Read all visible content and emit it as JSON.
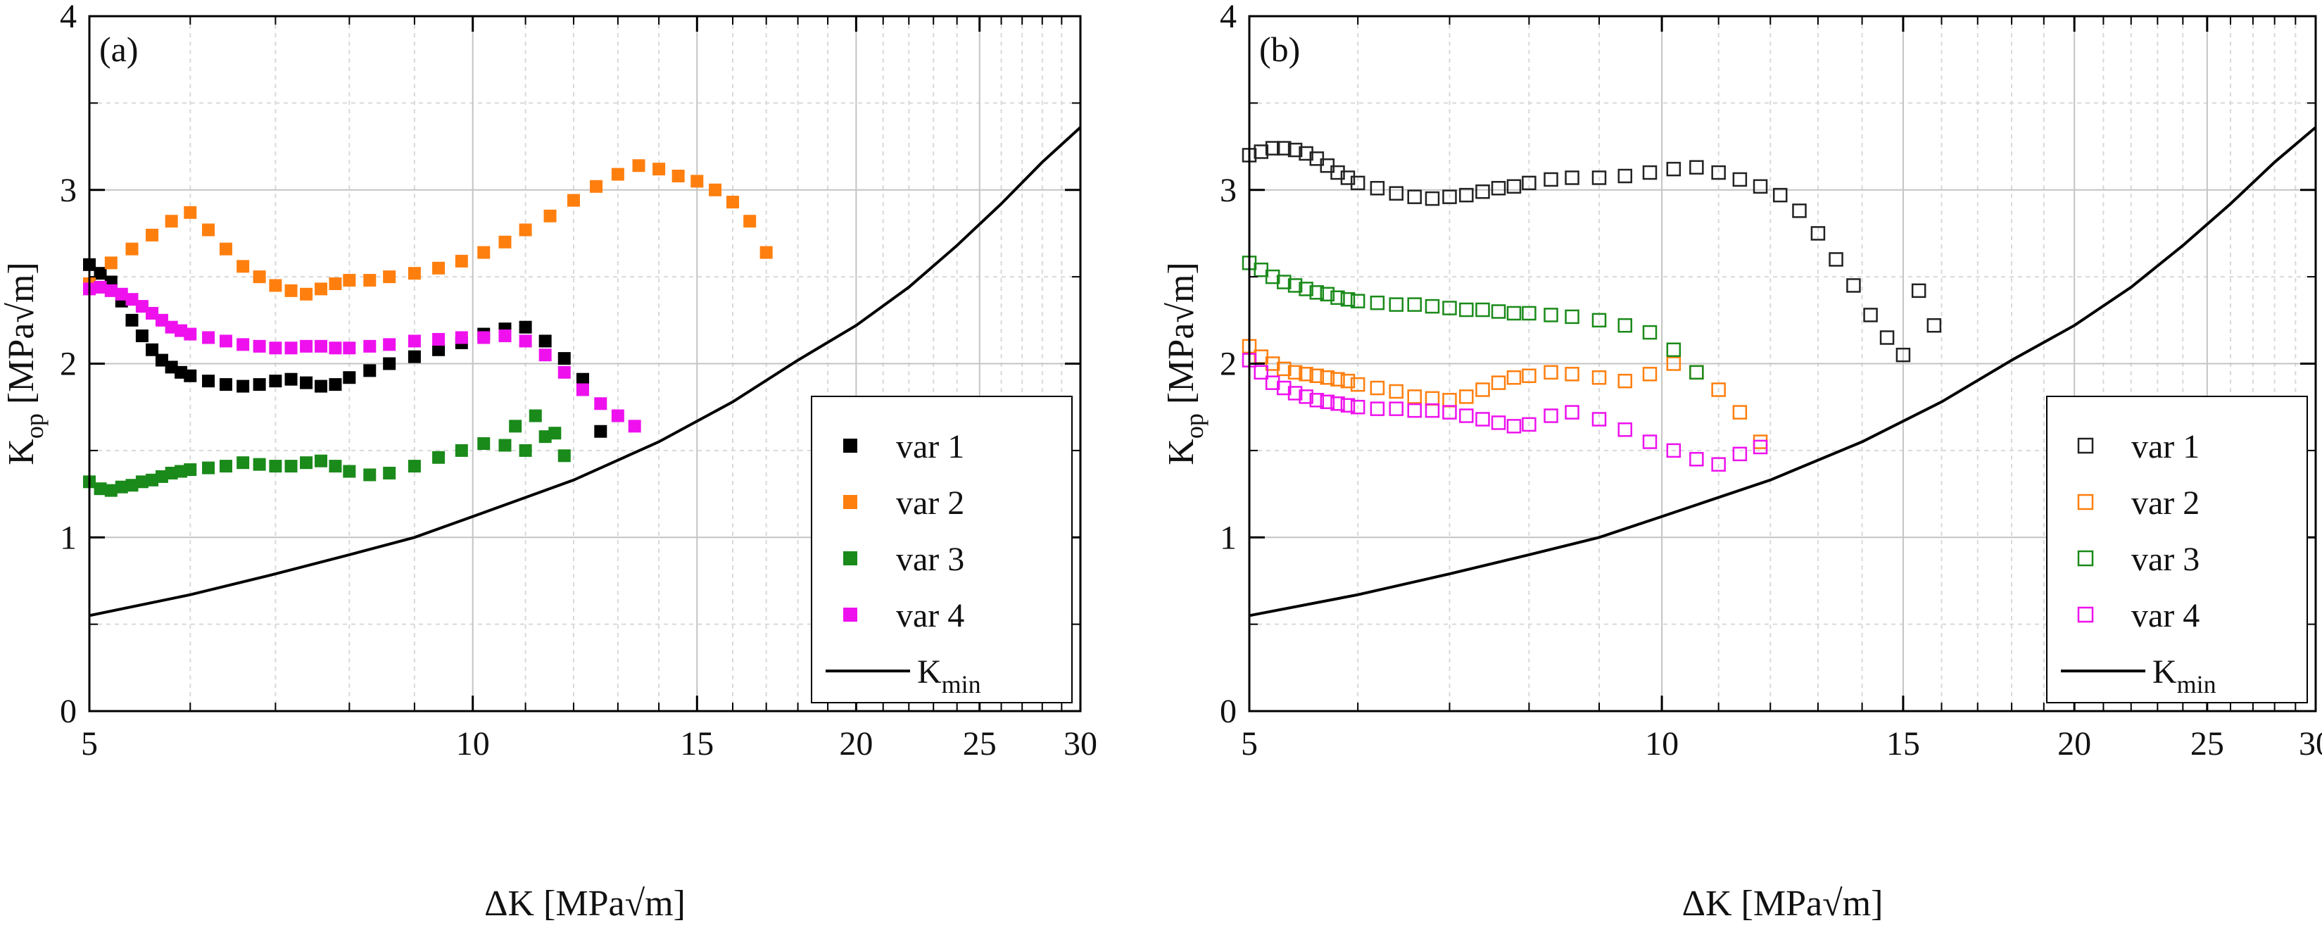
{
  "figure": {
    "background": "#ffffff"
  },
  "chart_data": [
    {
      "type": "scatter",
      "panel_label": "(a)",
      "xlabel": "ΔK [MPa√m]",
      "ylabel_main": "K",
      "ylabel_sub": "op",
      "ylabel_unit": " [MPa√m]",
      "xscale": "log",
      "xlim": [
        5,
        30
      ],
      "ylim": [
        0,
        4
      ],
      "xticks": [
        5,
        10,
        15,
        20,
        25,
        30
      ],
      "yticks": [
        0,
        1,
        2,
        3,
        4
      ],
      "grid": true,
      "marker": "filled-square",
      "legend_position": "bottom-right",
      "series": [
        {
          "name": "var 1",
          "color": "#000000",
          "x": [
            5.0,
            5.1,
            5.2,
            5.3,
            5.4,
            5.5,
            5.6,
            5.7,
            5.8,
            5.9,
            6.0,
            6.2,
            6.4,
            6.6,
            6.8,
            7.0,
            7.2,
            7.4,
            7.6,
            7.8,
            8.0,
            8.3,
            8.6,
            9.0,
            9.4,
            9.8,
            10.2,
            10.6,
            11.0,
            11.4,
            11.8,
            12.2,
            12.6
          ],
          "y": [
            2.57,
            2.52,
            2.47,
            2.36,
            2.25,
            2.16,
            2.08,
            2.02,
            1.98,
            1.95,
            1.93,
            1.9,
            1.88,
            1.87,
            1.88,
            1.9,
            1.91,
            1.89,
            1.87,
            1.88,
            1.92,
            1.96,
            2.0,
            2.04,
            2.08,
            2.12,
            2.17,
            2.2,
            2.21,
            2.13,
            2.03,
            1.91,
            1.61
          ]
        },
        {
          "name": "var 2",
          "color": "#ff7f0e",
          "x": [
            5.0,
            5.2,
            5.4,
            5.6,
            5.8,
            6.0,
            6.2,
            6.4,
            6.6,
            6.8,
            7.0,
            7.2,
            7.4,
            7.6,
            7.8,
            8.0,
            8.3,
            8.6,
            9.0,
            9.4,
            9.8,
            10.2,
            10.6,
            11.0,
            11.5,
            12.0,
            12.5,
            13.0,
            13.5,
            14.0,
            14.5,
            15.0,
            15.5,
            16.0,
            16.5,
            17.0
          ],
          "y": [
            2.46,
            2.58,
            2.66,
            2.74,
            2.82,
            2.87,
            2.77,
            2.66,
            2.56,
            2.5,
            2.45,
            2.42,
            2.4,
            2.43,
            2.46,
            2.48,
            2.48,
            2.5,
            2.52,
            2.55,
            2.59,
            2.64,
            2.7,
            2.77,
            2.85,
            2.94,
            3.02,
            3.09,
            3.14,
            3.12,
            3.08,
            3.05,
            3.0,
            2.93,
            2.82,
            2.64
          ]
        },
        {
          "name": "var 3",
          "color": "#1a8a1a",
          "x": [
            5.0,
            5.1,
            5.2,
            5.3,
            5.4,
            5.5,
            5.6,
            5.7,
            5.8,
            5.9,
            6.0,
            6.2,
            6.4,
            6.6,
            6.8,
            7.0,
            7.2,
            7.4,
            7.6,
            7.8,
            8.0,
            8.3,
            8.6,
            9.0,
            9.4,
            9.8,
            10.2,
            10.6,
            11.0,
            11.4,
            11.8
          ],
          "y": [
            1.32,
            1.28,
            1.27,
            1.29,
            1.3,
            1.32,
            1.33,
            1.35,
            1.37,
            1.38,
            1.39,
            1.4,
            1.41,
            1.43,
            1.42,
            1.41,
            1.41,
            1.43,
            1.44,
            1.41,
            1.38,
            1.36,
            1.37,
            1.41,
            1.46,
            1.5,
            1.54,
            1.53,
            1.5,
            1.58,
            1.47
          ],
          "x_extra": [
            10.8,
            11.2,
            11.6
          ],
          "y_extra": [
            1.64,
            1.7,
            1.6
          ]
        },
        {
          "name": "var 4",
          "color": "#ee11ee",
          "x": [
            5.0,
            5.1,
            5.2,
            5.3,
            5.4,
            5.5,
            5.6,
            5.7,
            5.8,
            5.9,
            6.0,
            6.2,
            6.4,
            6.6,
            6.8,
            7.0,
            7.2,
            7.4,
            7.6,
            7.8,
            8.0,
            8.3,
            8.6,
            9.0,
            9.4,
            9.8,
            10.2,
            10.6,
            11.0,
            11.4,
            11.8,
            12.2,
            12.6,
            13.0,
            13.4
          ],
          "y": [
            2.43,
            2.44,
            2.42,
            2.4,
            2.37,
            2.33,
            2.29,
            2.25,
            2.21,
            2.19,
            2.17,
            2.15,
            2.13,
            2.11,
            2.1,
            2.09,
            2.09,
            2.1,
            2.1,
            2.09,
            2.09,
            2.1,
            2.11,
            2.13,
            2.14,
            2.15,
            2.15,
            2.16,
            2.13,
            2.05,
            1.95,
            1.85,
            1.77,
            1.7,
            1.64
          ]
        }
      ],
      "reference_curve": {
        "name": "K",
        "name_sub": "min",
        "color": "#000000",
        "x": [
          5,
          6,
          7,
          8,
          9,
          10,
          12,
          14,
          16,
          18,
          20,
          22,
          24,
          26,
          28,
          30
        ],
        "y": [
          0.55,
          0.67,
          0.79,
          0.9,
          1.0,
          1.12,
          1.33,
          1.55,
          1.78,
          2.02,
          2.22,
          2.44,
          2.68,
          2.92,
          3.16,
          3.36
        ]
      }
    },
    {
      "type": "scatter",
      "panel_label": "(b)",
      "xlabel": "ΔK [MPa√m]",
      "ylabel_main": "K",
      "ylabel_sub": "op",
      "ylabel_unit": " [MPa√m]",
      "xscale": "log",
      "xlim": [
        5,
        30
      ],
      "ylim": [
        0,
        4
      ],
      "xticks": [
        5,
        10,
        15,
        20,
        25,
        30
      ],
      "yticks": [
        0,
        1,
        2,
        3,
        4
      ],
      "grid": true,
      "marker": "open-square",
      "legend_position": "bottom-right",
      "series": [
        {
          "name": "var 1",
          "color": "#222222",
          "x": [
            5.0,
            5.1,
            5.2,
            5.3,
            5.4,
            5.5,
            5.6,
            5.7,
            5.8,
            5.9,
            6.0,
            6.2,
            6.4,
            6.6,
            6.8,
            7.0,
            7.2,
            7.4,
            7.6,
            7.8,
            8.0,
            8.3,
            8.6,
            9.0,
            9.4,
            9.8,
            10.2,
            10.6,
            11.0,
            11.4,
            11.8,
            12.2,
            12.6,
            13.0,
            13.4,
            13.8,
            14.2,
            14.6,
            15.0,
            15.4,
            15.8
          ],
          "y": [
            3.2,
            3.22,
            3.24,
            3.24,
            3.23,
            3.21,
            3.18,
            3.14,
            3.1,
            3.07,
            3.04,
            3.01,
            2.98,
            2.96,
            2.95,
            2.96,
            2.97,
            2.99,
            3.01,
            3.02,
            3.04,
            3.06,
            3.07,
            3.07,
            3.08,
            3.1,
            3.12,
            3.13,
            3.1,
            3.06,
            3.02,
            2.97,
            2.88,
            2.75,
            2.6,
            2.45,
            2.28,
            2.15,
            2.05,
            2.42,
            2.22
          ]
        },
        {
          "name": "var 2",
          "color": "#ff7f0e",
          "x": [
            5.0,
            5.1,
            5.2,
            5.3,
            5.4,
            5.5,
            5.6,
            5.7,
            5.8,
            5.9,
            6.0,
            6.2,
            6.4,
            6.6,
            6.8,
            7.0,
            7.2,
            7.4,
            7.6,
            7.8,
            8.0,
            8.3,
            8.6,
            9.0,
            9.4,
            9.8,
            10.2,
            10.6,
            11.0,
            11.4,
            11.8
          ],
          "y": [
            2.1,
            2.04,
            2.0,
            1.97,
            1.95,
            1.94,
            1.93,
            1.92,
            1.91,
            1.9,
            1.88,
            1.86,
            1.84,
            1.81,
            1.8,
            1.79,
            1.81,
            1.85,
            1.89,
            1.92,
            1.93,
            1.95,
            1.94,
            1.92,
            1.9,
            1.94,
            2.0,
            1.95,
            1.85,
            1.72,
            1.55
          ]
        },
        {
          "name": "var 3",
          "color": "#1a8a1a",
          "x": [
            5.0,
            5.1,
            5.2,
            5.3,
            5.4,
            5.5,
            5.6,
            5.7,
            5.8,
            5.9,
            6.0,
            6.2,
            6.4,
            6.6,
            6.8,
            7.0,
            7.2,
            7.4,
            7.6,
            7.8,
            8.0,
            8.3,
            8.6,
            9.0,
            9.4,
            9.8,
            10.2,
            10.6
          ],
          "y": [
            2.58,
            2.54,
            2.5,
            2.47,
            2.45,
            2.43,
            2.41,
            2.4,
            2.38,
            2.37,
            2.36,
            2.35,
            2.34,
            2.34,
            2.33,
            2.32,
            2.31,
            2.31,
            2.3,
            2.29,
            2.29,
            2.28,
            2.27,
            2.25,
            2.22,
            2.18,
            2.08,
            1.95
          ]
        },
        {
          "name": "var 4",
          "color": "#ee11ee",
          "x": [
            5.0,
            5.1,
            5.2,
            5.3,
            5.4,
            5.5,
            5.6,
            5.7,
            5.8,
            5.9,
            6.0,
            6.2,
            6.4,
            6.6,
            6.8,
            7.0,
            7.2,
            7.4,
            7.6,
            7.8,
            8.0,
            8.3,
            8.6,
            9.0,
            9.4,
            9.8,
            10.2,
            10.6,
            11.0,
            11.4,
            11.8
          ],
          "y": [
            2.02,
            1.95,
            1.89,
            1.86,
            1.83,
            1.81,
            1.79,
            1.78,
            1.77,
            1.76,
            1.75,
            1.74,
            1.74,
            1.73,
            1.73,
            1.72,
            1.7,
            1.68,
            1.66,
            1.64,
            1.65,
            1.7,
            1.72,
            1.68,
            1.62,
            1.55,
            1.5,
            1.45,
            1.42,
            1.48,
            1.52
          ]
        }
      ],
      "reference_curve": {
        "name": "K",
        "name_sub": "min",
        "color": "#000000",
        "x": [
          5,
          6,
          7,
          8,
          9,
          10,
          12,
          14,
          16,
          18,
          20,
          22,
          24,
          26,
          28,
          30
        ],
        "y": [
          0.55,
          0.67,
          0.79,
          0.9,
          1.0,
          1.12,
          1.33,
          1.55,
          1.78,
          2.02,
          2.22,
          2.44,
          2.68,
          2.92,
          3.16,
          3.36
        ]
      }
    }
  ]
}
